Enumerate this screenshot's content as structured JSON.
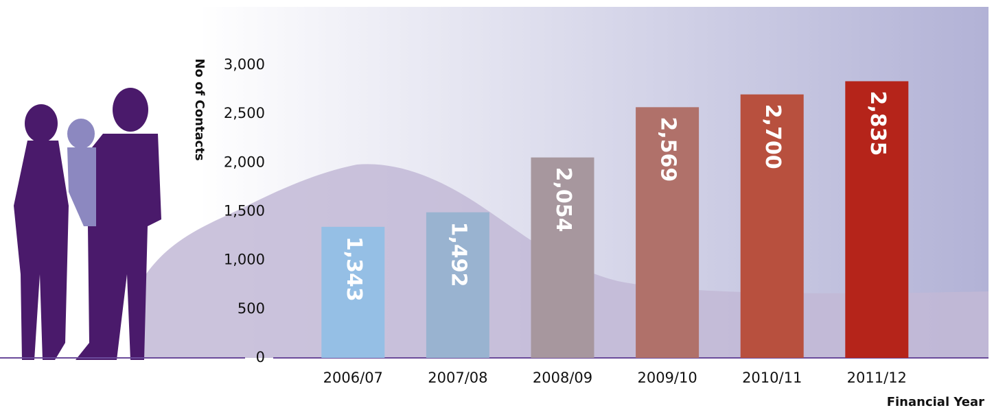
{
  "chart_data": {
    "type": "bar",
    "y_label": "No of Contacts",
    "x_label": "Financial Year",
    "categories": [
      "2006/07",
      "2007/08",
      "2008/09",
      "2009/10",
      "2010/11",
      "2011/12"
    ],
    "values": [
      1343,
      1492,
      2054,
      2569,
      2700,
      2835
    ],
    "value_labels": [
      "1,343",
      "1,492",
      "2,054",
      "2,569",
      "2,700",
      "2,835"
    ],
    "colors": [
      "#95bfe5",
      "#99b3d0",
      "#a7979e",
      "#b0716a",
      "#b8503e",
      "#b5241a"
    ],
    "ylim": [
      0,
      3000
    ],
    "yticks": [
      0,
      500,
      {
        "value": 1000,
        "label": "1,000"
      },
      {
        "value": 1500,
        "label": "1,500"
      },
      {
        "value": 2000,
        "label": "2,000"
      },
      {
        "value": 2500,
        "label": "2,500"
      },
      {
        "value": 3000,
        "label": "3,000"
      }
    ]
  }
}
